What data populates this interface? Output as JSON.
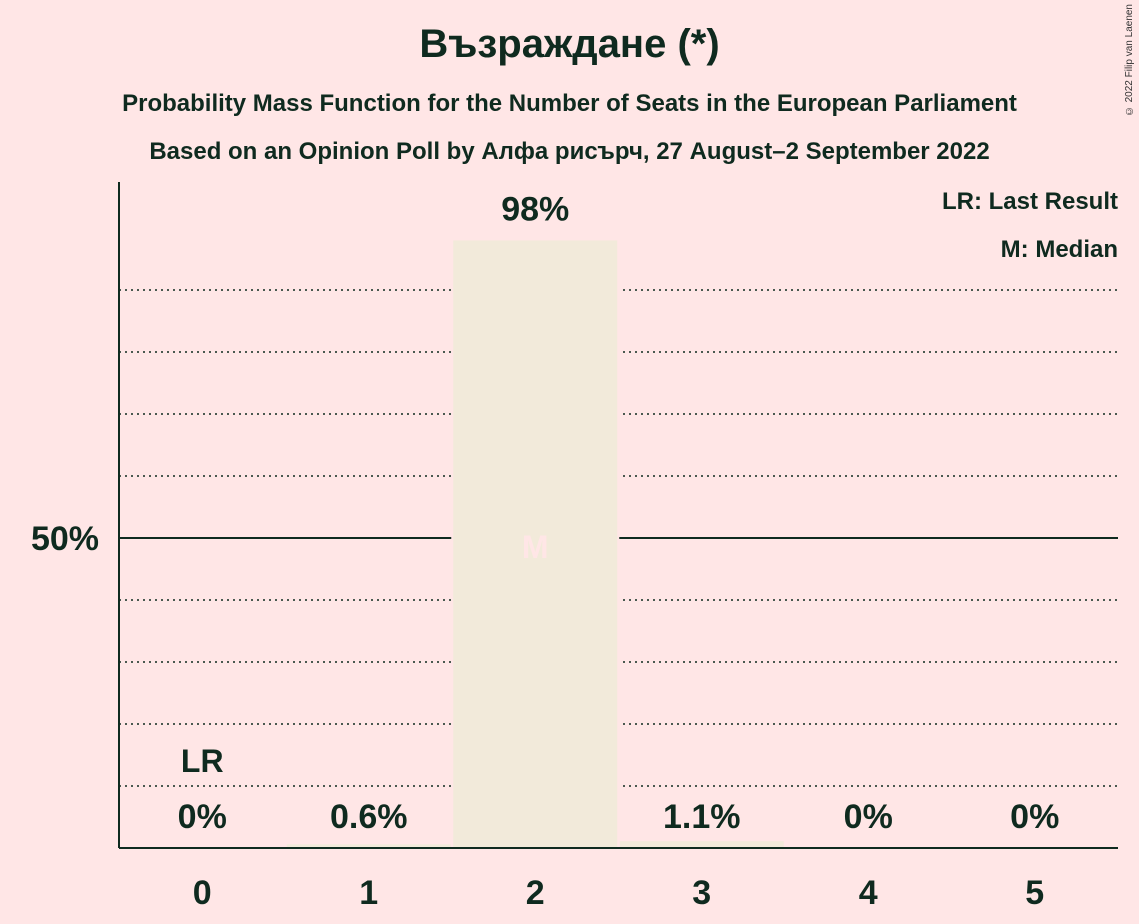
{
  "title": "Възраждане (*)",
  "subtitle1": "Probability Mass Function for the Number of Seats in the European Parliament",
  "subtitle2": "Based on an Opinion Poll by Алфа рисърч, 27 August–2 September 2022",
  "copyright": "© 2022 Filip van Laenen",
  "legend": {
    "last_result": "LR: Last Result",
    "median": "M: Median"
  },
  "colors": {
    "background": "#FFE6E6",
    "bar": "#F2EADA",
    "text": "#0F2A1F"
  },
  "chart_data": {
    "type": "bar",
    "categories": [
      "0",
      "1",
      "2",
      "3",
      "4",
      "5"
    ],
    "values": [
      0,
      0.6,
      98,
      1.1,
      0,
      0
    ],
    "value_labels": [
      "0%",
      "0.6%",
      "98%",
      "1.1%",
      "0%",
      "0%"
    ],
    "ylim": [
      0,
      100
    ],
    "y_ticks": [
      {
        "value": 50,
        "label": "50%"
      }
    ],
    "gridlines_dotted_every": 10,
    "last_result_category": "0",
    "last_result_label": "LR",
    "median_category": "2",
    "median_label": "M",
    "legend_position": "top-right"
  }
}
